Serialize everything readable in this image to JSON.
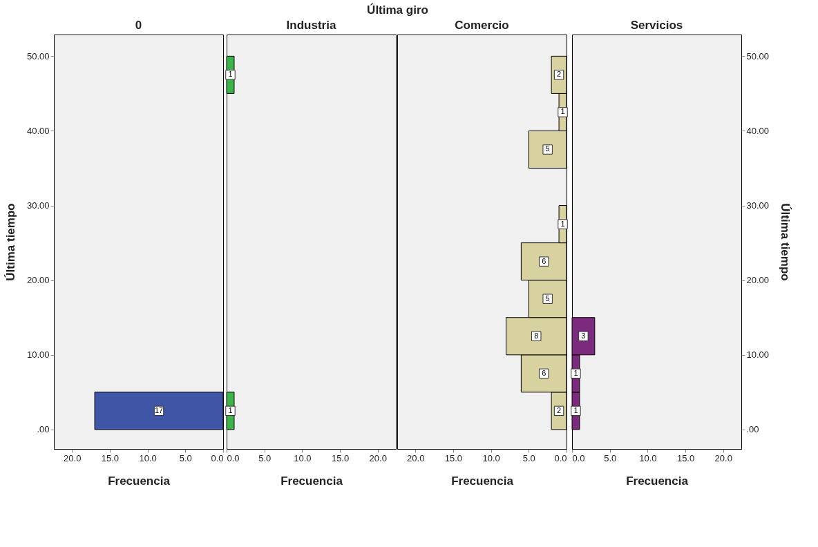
{
  "chart_data": [
    {
      "type": "histogram",
      "orientation": "horizontal",
      "title": "0",
      "annotations": [
        "Última giro"
      ],
      "xlabel": "Frecuencia",
      "ylabel": "Última tiempo",
      "color": "#3f55a6",
      "data_labels": true,
      "grid": false,
      "bins": [
        0,
        5,
        10,
        15,
        20,
        25,
        30,
        35,
        40,
        45,
        50
      ],
      "values": [
        17,
        null,
        null,
        null,
        null,
        null,
        null,
        null,
        null,
        null
      ],
      "xlim": [
        22.4,
        0
      ],
      "xticks": [
        {
          "value": 0,
          "label": "0.0"
        },
        {
          "value": 5,
          "label": "5.0"
        },
        {
          "value": 10,
          "label": "10.0"
        },
        {
          "value": 15,
          "label": "15.0"
        },
        {
          "value": 20,
          "label": "20.0"
        }
      ],
      "ylim": [
        -2.6,
        52.9
      ],
      "yticks": [
        {
          "value": 0,
          "label": ".00"
        },
        {
          "value": 10,
          "label": "10.00"
        },
        {
          "value": 20,
          "label": "20.00"
        },
        {
          "value": 30,
          "label": "30.00"
        },
        {
          "value": 40,
          "label": "40.00"
        },
        {
          "value": 50,
          "label": "50.00"
        }
      ]
    },
    {
      "type": "histogram",
      "orientation": "horizontal",
      "title": "Industria",
      "xlabel": "Frecuencia",
      "color": "#3cb44a",
      "data_labels": true,
      "grid": false,
      "tick_labels": "x",
      "bins": [
        0,
        5,
        10,
        15,
        20,
        25,
        30,
        35,
        40,
        45,
        50
      ],
      "values": [
        1,
        null,
        null,
        null,
        null,
        null,
        null,
        null,
        null,
        1
      ],
      "xlim": [
        0,
        22.4
      ],
      "xticks": [
        {
          "value": 0,
          "label": "0.0"
        },
        {
          "value": 5,
          "label": "5.0"
        },
        {
          "value": 10,
          "label": "10.0"
        },
        {
          "value": 15,
          "label": "15.0"
        },
        {
          "value": 20,
          "label": "20.0"
        }
      ],
      "ylim": [
        -2.6,
        52.9
      ]
    },
    {
      "type": "histogram",
      "orientation": "horizontal",
      "title": "Comercio",
      "xlabel": "Frecuencia",
      "color": "#d8d2a0",
      "data_labels": true,
      "grid": false,
      "tick_labels": "x",
      "bins": [
        0,
        5,
        10,
        15,
        20,
        25,
        30,
        35,
        40,
        45,
        50
      ],
      "values": [
        2,
        6,
        8,
        5,
        6,
        1,
        null,
        5,
        1,
        2
      ],
      "xlim": [
        22.4,
        0
      ],
      "xticks": [
        {
          "value": 0,
          "label": "0.0"
        },
        {
          "value": 5,
          "label": "5.0"
        },
        {
          "value": 10,
          "label": "10.0"
        },
        {
          "value": 15,
          "label": "15.0"
        },
        {
          "value": 20,
          "label": "20.0"
        }
      ],
      "ylim": [
        -2.6,
        52.9
      ]
    },
    {
      "type": "histogram",
      "orientation": "horizontal",
      "title": "Servicios",
      "xlabel": "Frecuencia",
      "ylabel": "Última tiempo",
      "color": "#7b2a7e",
      "data_labels": true,
      "grid": false,
      "bins": [
        0,
        5,
        10,
        15,
        20,
        25,
        30,
        35,
        40,
        45,
        50
      ],
      "values": [
        1,
        1,
        3,
        null,
        null,
        null,
        null,
        null,
        null,
        null
      ],
      "xlim": [
        0,
        22.4
      ],
      "xticks": [
        {
          "value": 0,
          "label": "0.0"
        },
        {
          "value": 5,
          "label": "5.0"
        },
        {
          "value": 10,
          "label": "10.0"
        },
        {
          "value": 15,
          "label": "15.0"
        },
        {
          "value": 20,
          "label": "20.0"
        }
      ],
      "ylim": [
        -2.6,
        52.9
      ],
      "yticks": [
        {
          "value": 0,
          "label": ".00"
        },
        {
          "value": 10,
          "label": "10.00"
        },
        {
          "value": 20,
          "label": "20.00"
        },
        {
          "value": 30,
          "label": "30.00"
        },
        {
          "value": 40,
          "label": "40.00"
        },
        {
          "value": 50,
          "label": "50.00"
        }
      ]
    }
  ]
}
